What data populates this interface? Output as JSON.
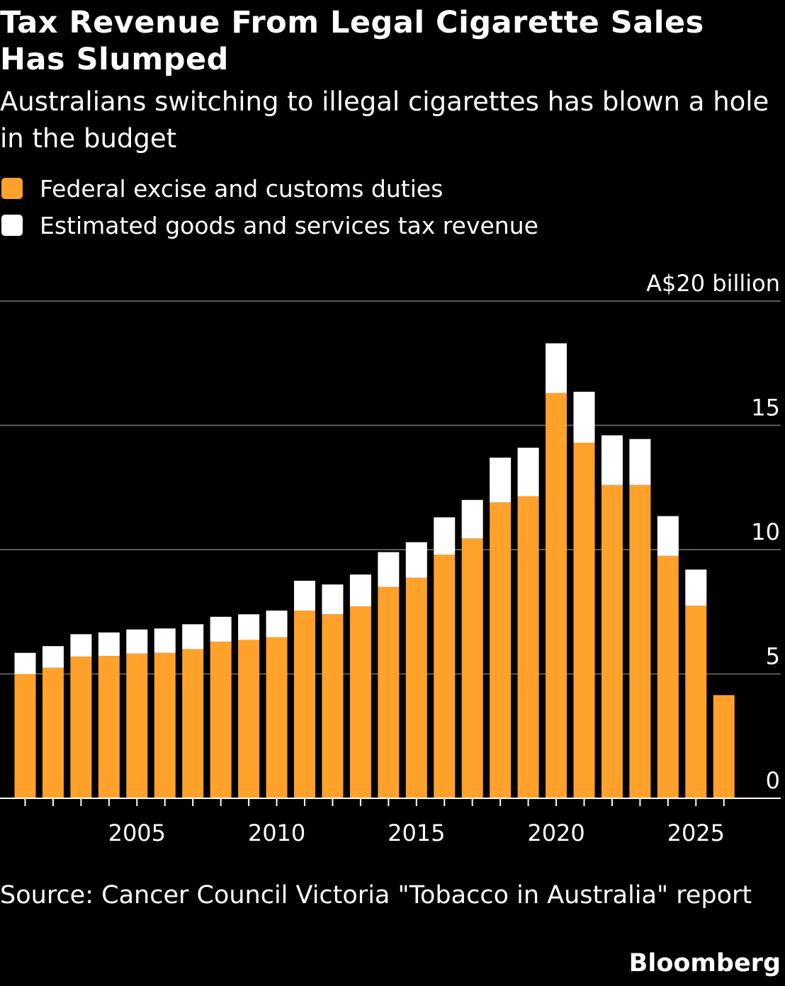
{
  "title": "Tax Revenue From Legal Cigarette Sales Has Slumped",
  "subtitle": "Australians switching to illegal cigarettes has blown a hole in the budget",
  "source": "Source: Cancer Council Victoria \"Tobacco in Australia\" report",
  "logo": "Bloomberg",
  "colors": {
    "excise": "#FFA12B",
    "gst": "#FFFFFF",
    "background": "#000000",
    "grid": "#5a5a5a"
  },
  "chart_data": {
    "type": "bar",
    "stacked": true,
    "categories": [
      2001,
      2002,
      2003,
      2004,
      2005,
      2006,
      2007,
      2008,
      2009,
      2010,
      2011,
      2012,
      2013,
      2014,
      2015,
      2016,
      2017,
      2018,
      2019,
      2020,
      2021,
      2022,
      2023,
      2024,
      2025,
      2026
    ],
    "series": [
      {
        "name": "Federal excise and customs duties",
        "color": "#FFA12B",
        "values": [
          5.0,
          5.25,
          5.7,
          5.72,
          5.82,
          5.85,
          6.0,
          6.3,
          6.37,
          6.48,
          7.55,
          7.4,
          7.72,
          8.5,
          8.87,
          9.8,
          10.45,
          11.9,
          12.15,
          16.3,
          14.3,
          12.6,
          12.6,
          9.75,
          7.75,
          4.15
        ]
      },
      {
        "name": "Estimated goods and services tax revenue",
        "color": "#FFFFFF",
        "values": [
          0.85,
          0.87,
          0.9,
          0.95,
          0.97,
          0.98,
          1.0,
          1.0,
          1.03,
          1.07,
          1.2,
          1.2,
          1.28,
          1.4,
          1.43,
          1.5,
          1.55,
          1.8,
          1.95,
          2.0,
          2.05,
          2.0,
          1.85,
          1.6,
          1.45,
          0
        ]
      }
    ],
    "ylim": [
      0,
      20
    ],
    "yticks": [
      0,
      5,
      10,
      15,
      20
    ],
    "ytick_labels": [
      "0",
      "5",
      "10",
      "15",
      "A$20 billion"
    ],
    "xtick_labels": [
      "2005",
      "2010",
      "2015",
      "2020",
      "2025"
    ],
    "xtick_label_years": [
      2005,
      2010,
      2015,
      2020,
      2025
    ],
    "grid": "horizontal",
    "legend": "top-left"
  }
}
